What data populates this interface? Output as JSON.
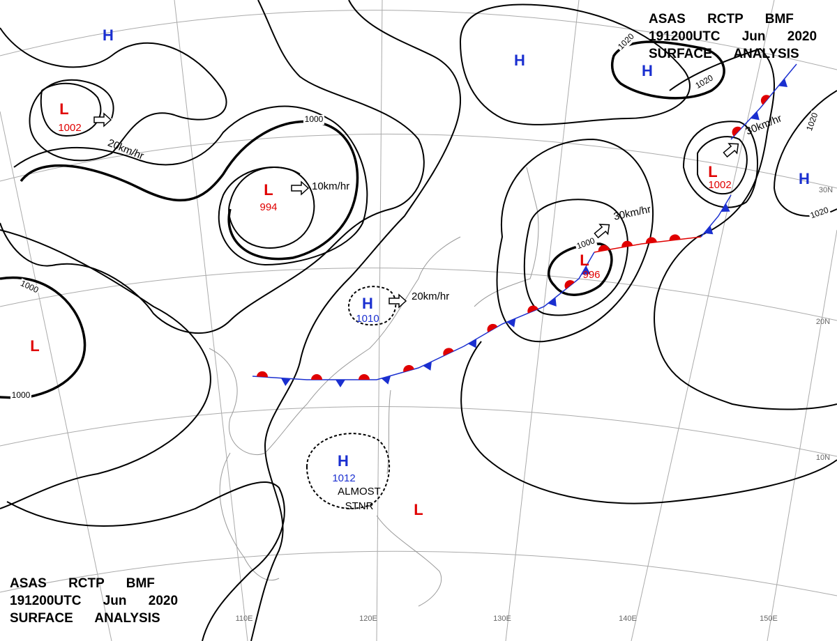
{
  "header_top": {
    "lines": [
      "ASAS RCTP BMF",
      "191200UTC Jun 2020",
      "SURFACE ANALYSIS"
    ]
  },
  "header_bottom": {
    "lines": [
      "ASAS RCTP BMF",
      "191200UTC Jun 2020",
      "SURFACE ANALYSIS"
    ]
  },
  "pressure_systems": [
    {
      "symbol": "H"
    },
    {
      "symbol": "L",
      "value": 1002
    },
    {
      "symbol": "H"
    },
    {
      "symbol": "H"
    },
    {
      "symbol": "L",
      "value": 994
    },
    {
      "symbol": "L",
      "value": 1002
    },
    {
      "symbol": "H"
    },
    {
      "symbol": "L",
      "value": 996
    },
    {
      "symbol": "H",
      "value": 1010
    },
    {
      "symbol": "L"
    },
    {
      "symbol": "H",
      "value": 1012
    },
    {
      "symbol": "L"
    }
  ],
  "motion_labels": [
    "20km/hr",
    "10km/hr",
    "20km/hr",
    "30km/hr",
    "30km/hr"
  ],
  "status_labels": [
    "ALMOST",
    "STNR"
  ],
  "isobar_labels": [
    1000,
    1000,
    1000,
    1000,
    1020,
    1020,
    1020,
    1020
  ],
  "grid_labels": [
    "110E",
    "120E",
    "130E",
    "140E",
    "150E",
    "30N",
    "20N",
    "10N"
  ]
}
